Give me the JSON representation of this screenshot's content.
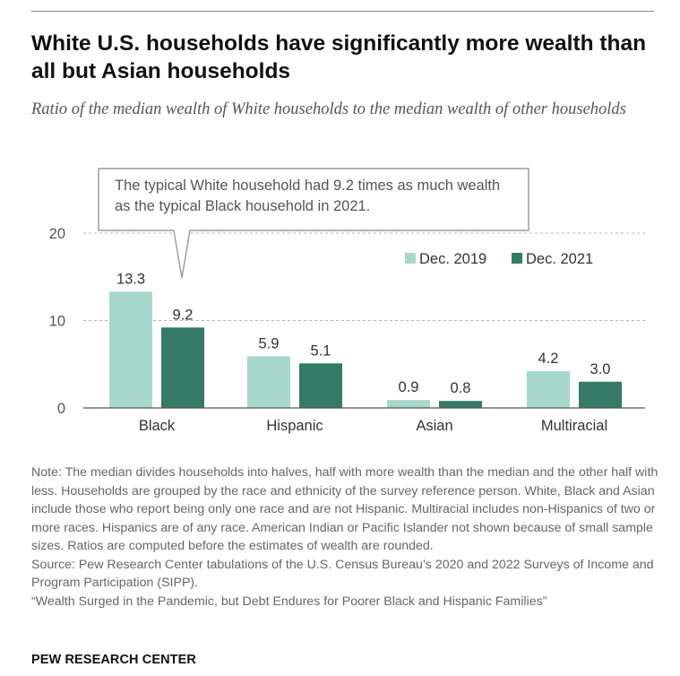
{
  "title": "White U.S. households have significantly more wealth than all but Asian households",
  "subtitle": "Ratio of the median wealth of White households to the median wealth of other households",
  "callout": "The typical White household had 9.2 times as much wealth as the typical Black household in 2021.",
  "notes": {
    "note": "Note: The median divides households into halves, half with more wealth than the median and the other half with less. Households are grouped by the race and ethnicity of the survey reference person. White, Black and Asian include those who report being only one race and are not Hispanic. Multiracial includes non-Hispanics of two or more races. Hispanics are of any race. American Indian or Pacific Islander not shown because of small sample sizes. Ratios are computed before the estimates of wealth are rounded.",
    "source": "Source: Pew Research Center tabulations of the U.S. Census Bureau’s 2020 and 2022 Surveys of Income and Program Participation (SIPP).",
    "report": "“Wealth Surged in the Pandemic, but Debt Endures for Poorer Black and Hispanic Families”"
  },
  "brand": "PEW RESEARCH CENTER",
  "chart_data": {
    "type": "bar",
    "categories": [
      "Black",
      "Hispanic",
      "Asian",
      "Multiracial"
    ],
    "series": [
      {
        "name": "Dec. 2019",
        "values": [
          13.3,
          5.9,
          0.9,
          4.2
        ],
        "labels": [
          "13.3",
          "5.9",
          "0.9",
          "4.2"
        ],
        "color": "#a8d8cc"
      },
      {
        "name": "Dec. 2021",
        "values": [
          9.2,
          5.1,
          0.8,
          3.0
        ],
        "labels": [
          "9.2",
          "5.1",
          "0.8",
          "3.0"
        ],
        "color": "#357a66"
      }
    ],
    "ylim": [
      0,
      20
    ],
    "yticks": [
      0,
      10,
      20
    ],
    "grid": true,
    "legend": "top-right",
    "xlabel": "",
    "ylabel": ""
  }
}
